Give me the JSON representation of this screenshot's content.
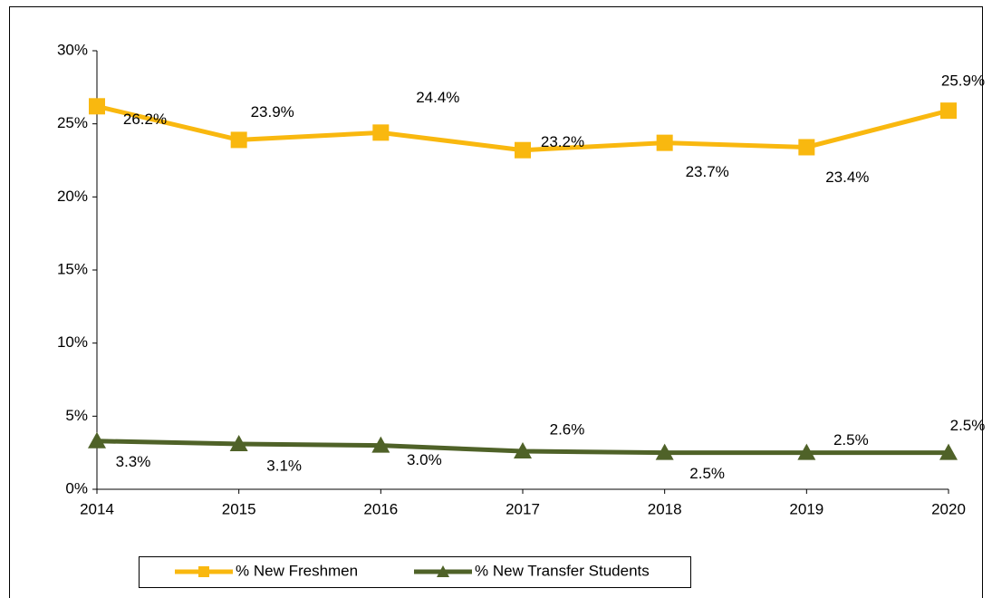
{
  "chart_data": {
    "type": "line",
    "x": [
      2014,
      2015,
      2016,
      2017,
      2018,
      2019,
      2020
    ],
    "xlim": [
      2014,
      2020
    ],
    "xticks": [
      2014,
      2015,
      2016,
      2017,
      2018,
      2019,
      2020
    ],
    "ylim": [
      0,
      30
    ],
    "yticks": [
      {
        "value": 0,
        "label": "0%"
      },
      {
        "value": 5,
        "label": "5%"
      },
      {
        "value": 10,
        "label": "10%"
      },
      {
        "value": 15,
        "label": "15%"
      },
      {
        "value": 20,
        "label": "20%"
      },
      {
        "value": 25,
        "label": "25%"
      },
      {
        "value": 30,
        "label": "30%"
      }
    ],
    "grid": false,
    "legend": "bottom",
    "series": [
      {
        "name": "% New Freshmen",
        "color": "#F9B80F",
        "marker": "square",
        "values": [
          26.2,
          23.9,
          24.4,
          23.2,
          23.7,
          23.4,
          25.9
        ],
        "value_labels": [
          "26.2%",
          "23.9%",
          "24.4%",
          "23.2%",
          "23.7%",
          "23.4%",
          "25.9%"
        ]
      },
      {
        "name": "% New Transfer Students",
        "color": "#4F6228",
        "marker": "triangle",
        "values": [
          3.3,
          3.1,
          3.0,
          2.6,
          2.5,
          2.5,
          2.5
        ],
        "value_labels": [
          "3.3%",
          "3.1%",
          "3.0%",
          "2.6%",
          "2.5%",
          "2.5%",
          "2.5%"
        ]
      }
    ]
  }
}
